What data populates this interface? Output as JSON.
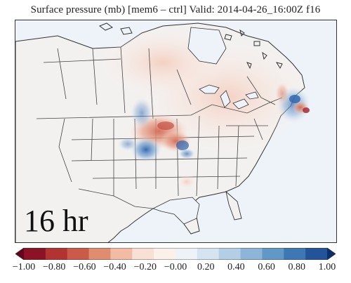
{
  "title": "Surface pressure (mb) [mem6 – ctrl] Valid: 2014-04-26_16:00Z f16",
  "forecast_hour_label": "16 hr",
  "colorbar": {
    "min": -1.0,
    "max": 1.0,
    "ticks": [
      "−1.00",
      "−0.80",
      "−0.60",
      "−0.40",
      "−0.20",
      "−0.00",
      "0.20",
      "0.40",
      "0.60",
      "0.80",
      "1.00"
    ],
    "colors": [
      "#67001f",
      "#8c1326",
      "#b2332f",
      "#cc5a48",
      "#e08c6f",
      "#f2bca4",
      "#f8e0d4",
      "#fbf0ea",
      "#eef3f8",
      "#d5e4f1",
      "#b3cfe6",
      "#8cb5d8",
      "#6198c6",
      "#3e78b4",
      "#23549a",
      "#083070"
    ]
  },
  "colors": {
    "border": "#333333",
    "background": "#f1f5fa",
    "positive": "#2a5ea8",
    "negative": "#b2332f"
  }
}
